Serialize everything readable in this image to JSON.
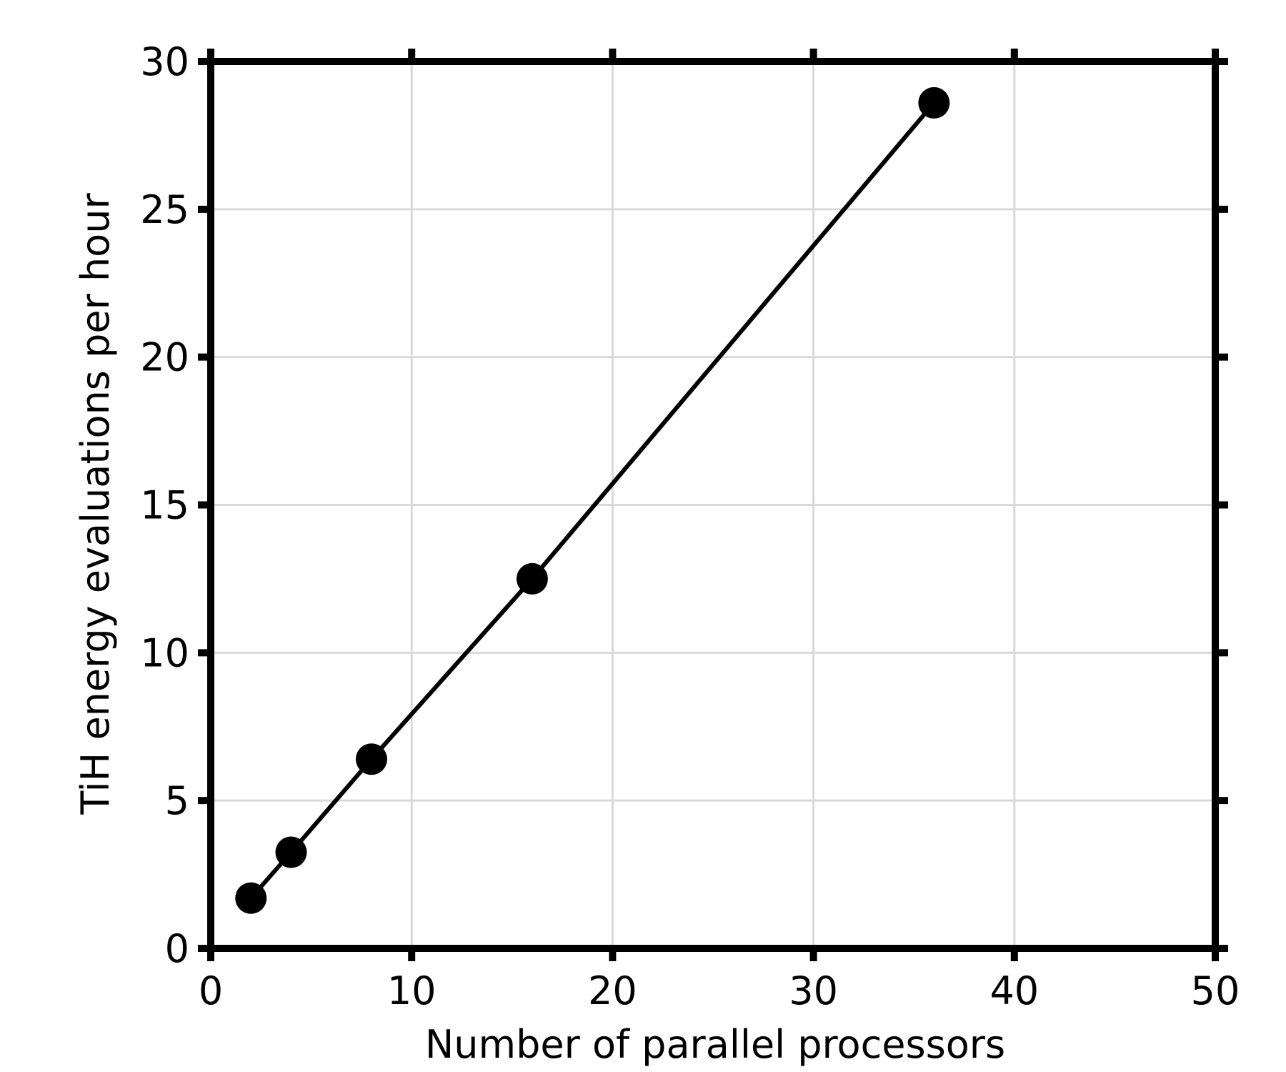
{
  "chart_data": {
    "type": "line",
    "title": "",
    "xlabel": "Number of parallel processors",
    "ylabel": "TiH energy evaluations per hour",
    "xlim": [
      0,
      50
    ],
    "ylim": [
      0,
      30
    ],
    "x_ticks": [
      0,
      10,
      20,
      30,
      40,
      50
    ],
    "y_ticks": [
      0,
      5,
      10,
      15,
      20,
      25,
      30
    ],
    "grid": true,
    "legend": "none",
    "series": [
      {
        "color": "#000000",
        "marker": "circle",
        "x": [
          2,
          4,
          8,
          16,
          36
        ],
        "y": [
          1.7,
          3.25,
          6.4,
          12.5,
          28.6
        ]
      }
    ]
  }
}
